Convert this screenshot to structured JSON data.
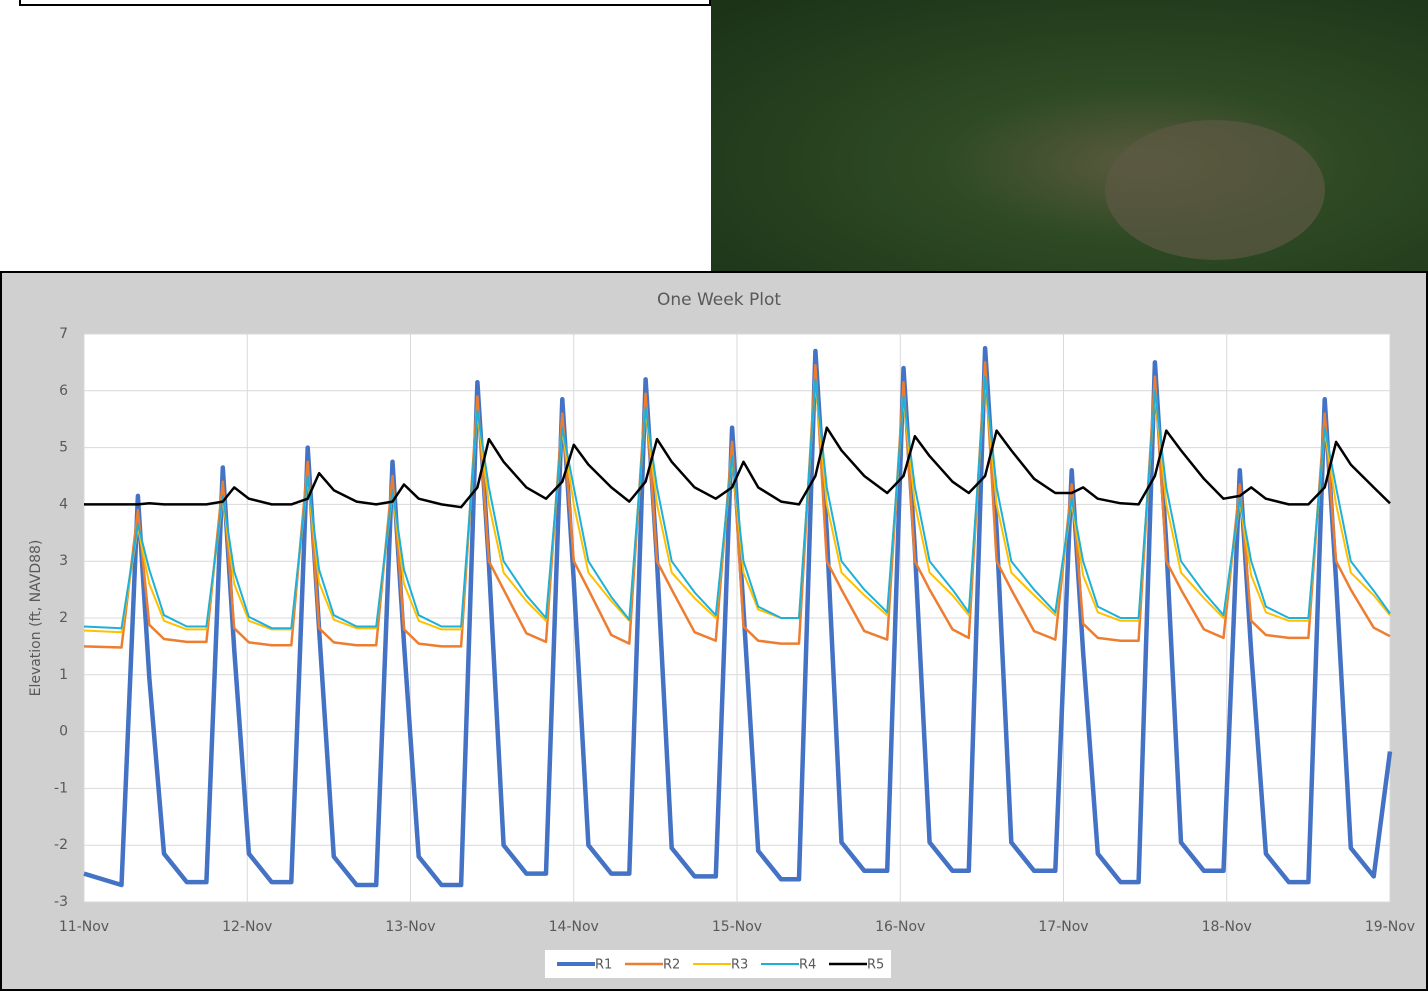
{
  "chart_data": {
    "type": "line",
    "title": "One Week Plot",
    "y_label": "Elevation (ft, NAVD88)",
    "x": [
      11.0,
      11.23,
      11.33,
      11.4,
      11.49,
      11.63,
      11.75,
      11.85,
      11.92,
      12.01,
      12.15,
      12.27,
      12.37,
      12.44,
      12.53,
      12.67,
      12.79,
      12.89,
      12.96,
      13.05,
      13.19,
      13.31,
      13.41,
      13.48,
      13.57,
      13.71,
      13.83,
      13.93,
      14.0,
      14.09,
      14.23,
      14.34,
      14.44,
      14.51,
      14.6,
      14.74,
      14.87,
      14.97,
      15.04,
      15.13,
      15.27,
      15.38,
      15.48,
      15.55,
      15.64,
      15.78,
      15.92,
      16.02,
      16.09,
      16.18,
      16.32,
      16.42,
      16.52,
      16.59,
      16.68,
      16.82,
      16.95,
      17.05,
      17.12,
      17.21,
      17.35,
      17.46,
      17.56,
      17.63,
      17.72,
      17.86,
      17.98,
      18.08,
      18.15,
      18.24,
      18.38,
      18.5,
      18.6,
      18.67,
      18.76,
      18.9,
      19.0
    ],
    "series": [
      {
        "name": "R1",
        "color": "#4472c4",
        "width": 4.5,
        "values": [
          -2.5,
          -2.7,
          4.15,
          0.95,
          -2.15,
          -2.65,
          -2.65,
          4.65,
          1.45,
          -2.15,
          -2.65,
          -2.65,
          5.0,
          1.8,
          -2.2,
          -2.7,
          -2.7,
          4.75,
          1.55,
          -2.2,
          -2.7,
          -2.7,
          6.15,
          2.95,
          -2.0,
          -2.5,
          -2.5,
          5.85,
          2.65,
          -2.0,
          -2.5,
          -2.5,
          6.2,
          3.0,
          -2.05,
          -2.55,
          -2.55,
          5.35,
          2.15,
          -2.1,
          -2.6,
          -2.6,
          6.7,
          3.5,
          -1.95,
          -2.45,
          -2.45,
          6.4,
          3.2,
          -1.95,
          -2.45,
          -2.45,
          6.75,
          3.55,
          -1.95,
          -2.45,
          -2.45,
          4.6,
          1.4,
          -2.15,
          -2.65,
          -2.65,
          6.5,
          3.3,
          -1.95,
          -2.45,
          -2.45,
          4.6,
          1.4,
          -2.15,
          -2.65,
          -2.65,
          5.85,
          2.65,
          -2.05,
          -2.55,
          -0.35
        ]
      },
      {
        "name": "R2",
        "color": "#ed7d31",
        "width": 2.5,
        "values": [
          1.5,
          1.48,
          3.9,
          1.88,
          1.63,
          1.58,
          1.58,
          4.4,
          1.82,
          1.57,
          1.52,
          1.52,
          4.75,
          1.82,
          1.57,
          1.52,
          1.52,
          4.5,
          1.8,
          1.55,
          1.5,
          1.5,
          5.9,
          3.0,
          2.5,
          1.73,
          1.58,
          5.6,
          3.0,
          2.5,
          1.7,
          1.55,
          5.95,
          3.0,
          2.5,
          1.75,
          1.6,
          5.1,
          1.85,
          1.6,
          1.55,
          1.55,
          6.45,
          3.0,
          2.5,
          1.77,
          1.62,
          6.15,
          3.0,
          2.5,
          1.8,
          1.65,
          6.5,
          3.0,
          2.5,
          1.77,
          1.62,
          4.35,
          1.9,
          1.65,
          1.6,
          1.6,
          6.25,
          3.0,
          2.5,
          1.8,
          1.65,
          4.35,
          1.95,
          1.7,
          1.65,
          1.65,
          5.6,
          3.0,
          2.5,
          1.83,
          1.68
        ]
      },
      {
        "name": "R3",
        "color": "#ffc000",
        "width": 2,
        "values": [
          1.78,
          1.75,
          3.6,
          2.6,
          1.95,
          1.8,
          1.8,
          4.1,
          2.6,
          1.95,
          1.8,
          1.8,
          4.45,
          2.62,
          1.97,
          1.82,
          1.82,
          4.2,
          2.6,
          1.95,
          1.8,
          1.8,
          5.6,
          4.0,
          2.8,
          2.3,
          1.95,
          5.3,
          4.0,
          2.8,
          2.3,
          1.95,
          5.65,
          4.0,
          2.8,
          2.35,
          2.0,
          4.8,
          2.8,
          2.15,
          2.0,
          2.0,
          6.15,
          4.0,
          2.8,
          2.4,
          2.05,
          5.85,
          4.0,
          2.8,
          2.4,
          2.05,
          6.2,
          4.0,
          2.8,
          2.4,
          2.05,
          4.05,
          2.75,
          2.1,
          1.95,
          1.95,
          5.95,
          4.0,
          2.8,
          2.35,
          2.0,
          4.05,
          2.75,
          2.1,
          1.95,
          1.95,
          5.3,
          4.0,
          2.8,
          2.4,
          2.05
        ]
      },
      {
        "name": "R4",
        "color": "#1fb0d8",
        "width": 2,
        "values": [
          1.85,
          1.82,
          3.65,
          2.85,
          2.05,
          1.85,
          1.85,
          4.15,
          2.82,
          2.02,
          1.82,
          1.82,
          4.5,
          2.85,
          2.05,
          1.85,
          1.85,
          4.25,
          2.85,
          2.05,
          1.85,
          1.85,
          5.65,
          4.3,
          3.0,
          2.4,
          2.0,
          5.35,
          4.3,
          3.0,
          2.37,
          1.97,
          5.7,
          4.3,
          3.0,
          2.45,
          2.05,
          4.85,
          3.0,
          2.2,
          2.0,
          2.0,
          6.2,
          4.3,
          3.0,
          2.5,
          2.1,
          5.9,
          4.3,
          3.0,
          2.5,
          2.1,
          6.25,
          4.3,
          3.0,
          2.5,
          2.1,
          4.1,
          3.0,
          2.2,
          2.0,
          2.0,
          6.0,
          4.3,
          3.0,
          2.45,
          2.05,
          4.1,
          3.0,
          2.2,
          2.0,
          2.0,
          5.35,
          4.3,
          3.0,
          2.48,
          2.08
        ]
      },
      {
        "name": "R5",
        "color": "#000000",
        "width": 2.5,
        "values": [
          4.0,
          4.0,
          4.0,
          4.02,
          4.0,
          4.0,
          4.0,
          4.05,
          4.3,
          4.1,
          4.0,
          4.0,
          4.1,
          4.55,
          4.25,
          4.05,
          4.0,
          4.05,
          4.35,
          4.1,
          4.0,
          3.95,
          4.3,
          5.15,
          4.75,
          4.3,
          4.1,
          4.4,
          5.05,
          4.7,
          4.3,
          4.05,
          4.4,
          5.15,
          4.75,
          4.3,
          4.1,
          4.3,
          4.75,
          4.3,
          4.05,
          4.0,
          4.5,
          5.35,
          4.95,
          4.5,
          4.2,
          4.5,
          5.2,
          4.85,
          4.4,
          4.2,
          4.5,
          5.3,
          4.95,
          4.45,
          4.2,
          4.2,
          4.3,
          4.1,
          4.02,
          4.0,
          4.5,
          5.3,
          4.95,
          4.45,
          4.1,
          4.15,
          4.3,
          4.1,
          4.0,
          4.0,
          4.3,
          5.1,
          4.7,
          4.3,
          4.02
        ]
      }
    ],
    "xlim": [
      11,
      19
    ],
    "xticks": [
      {
        "value": 11,
        "label": "11-Nov"
      },
      {
        "value": 12,
        "label": "12-Nov"
      },
      {
        "value": 13,
        "label": "13-Nov"
      },
      {
        "value": 14,
        "label": "14-Nov"
      },
      {
        "value": 15,
        "label": "15-Nov"
      },
      {
        "value": 16,
        "label": "16-Nov"
      },
      {
        "value": 17,
        "label": "17-Nov"
      },
      {
        "value": 18,
        "label": "18-Nov"
      },
      {
        "value": 19,
        "label": "19-Nov"
      }
    ],
    "ylim": [
      -3,
      7
    ],
    "yticks": [
      -3,
      -2,
      -1,
      0,
      1,
      2,
      3,
      4,
      5,
      6,
      7
    ],
    "grid": true,
    "legend": "bottom"
  }
}
